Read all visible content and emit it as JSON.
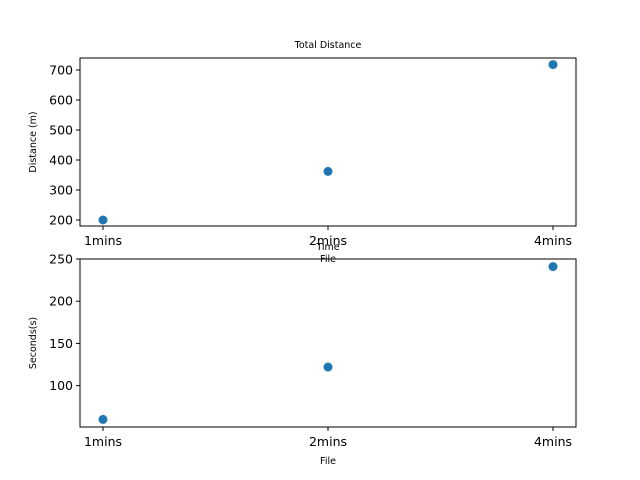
{
  "chart_data": [
    {
      "type": "scatter",
      "title": "Total Distance",
      "xlabel": "Time",
      "xlabel_secondary": "File",
      "ylabel": "Distance (m)",
      "categories": [
        "1mins",
        "2mins",
        "4mins"
      ],
      "series": [
        {
          "values": [
            200,
            362,
            718
          ],
          "color": "#1f77b4"
        }
      ],
      "ylim": [
        180,
        740
      ],
      "yticks": [
        200,
        300,
        400,
        500,
        600,
        700
      ],
      "grid": false
    },
    {
      "type": "scatter",
      "title": "",
      "xlabel": "File",
      "ylabel": "Seconds(s)",
      "categories": [
        "1mins",
        "2mins",
        "4mins"
      ],
      "series": [
        {
          "values": [
            60,
            122,
            241
          ],
          "color": "#1f77b4"
        }
      ],
      "ylim": [
        51,
        250
      ],
      "yticks": [
        100,
        150,
        200,
        250
      ],
      "grid": false
    }
  ]
}
